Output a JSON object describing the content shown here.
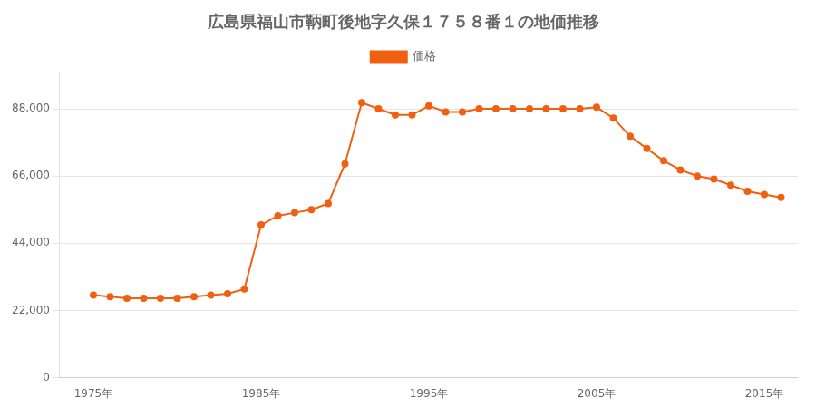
{
  "chart_data": {
    "type": "line",
    "title": "広島県福山市鞆町後地字久保１７５８番１の地価推移",
    "x": [
      1975,
      1976,
      1977,
      1978,
      1979,
      1980,
      1981,
      1982,
      1983,
      1984,
      1985,
      1986,
      1987,
      1988,
      1989,
      1990,
      1991,
      1992,
      1993,
      1994,
      1995,
      1996,
      1997,
      1998,
      1999,
      2000,
      2001,
      2002,
      2003,
      2004,
      2005,
      2006,
      2007,
      2008,
      2009,
      2010,
      2011,
      2012,
      2013,
      2014,
      2015,
      2016
    ],
    "series": [
      {
        "name": "価格",
        "color": "#f06010",
        "values": [
          27000,
          26500,
          26000,
          26000,
          26000,
          26000,
          26500,
          27000,
          27500,
          29000,
          50000,
          53000,
          54000,
          55000,
          57000,
          70000,
          90000,
          88000,
          86000,
          86000,
          89000,
          87000,
          87000,
          88000,
          88000,
          88000,
          88000,
          88000,
          88000,
          88000,
          88500,
          85000,
          79000,
          75000,
          71000,
          68000,
          66000,
          65000,
          63000,
          61000,
          60000,
          59000
        ]
      }
    ],
    "xlim": [
      1973,
      2017
    ],
    "xticks": [
      {
        "value": 1975,
        "label": "1975年"
      },
      {
        "value": 1985,
        "label": "1985年"
      },
      {
        "value": 1995,
        "label": "1995年"
      },
      {
        "value": 2005,
        "label": "2005年"
      },
      {
        "value": 2015,
        "label": "2015年"
      }
    ],
    "ylim": [
      0,
      100000
    ],
    "yticks": [
      0,
      {
        "value": 22000,
        "label": "22,000"
      },
      {
        "value": 44000,
        "label": "44,000"
      },
      {
        "value": 66000,
        "label": "66,000"
      },
      {
        "value": 88000,
        "label": "88,000"
      }
    ],
    "grid": "y",
    "legend": "top",
    "marker": "circle"
  }
}
